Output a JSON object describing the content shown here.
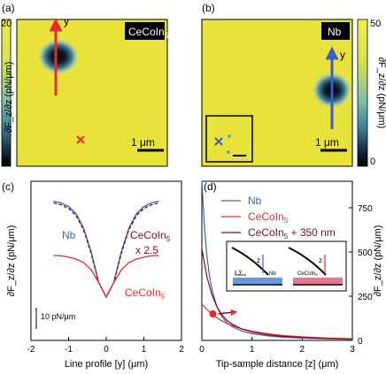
{
  "panels": {
    "a": {
      "label": "(a)",
      "material": "CeCoIn",
      "material_sub": "5",
      "scalebar": "1 μm",
      "axis_label": "y",
      "colorbar_ticks": [
        "20",
        "0"
      ],
      "colorbar_label": "∂F_z/∂z (pN/μm)"
    },
    "b": {
      "label": "(b)",
      "material": "Nb",
      "scalebar": "1 μm",
      "axis_label": "y",
      "colorbar_ticks": [
        "50",
        "0"
      ],
      "colorbar_label": "∂F_z/∂z (pN/μm)"
    },
    "c": {
      "label": "(c)",
      "ylabel": "∂F_z/∂z (pN/μm)",
      "xlabel": "Line profile [y] (μm)",
      "xticks": [
        "-2",
        "-1",
        "0",
        "1",
        "2"
      ],
      "scale_text": "10 pN/μm",
      "annotations": {
        "nb": "Nb",
        "ce_scaled": "CeCoIn",
        "ce_scaled_sub": "5",
        "ce_factor": "x 2.5",
        "ce": "CeCoIn",
        "ce_sub": "5"
      }
    },
    "d": {
      "label": "(d)",
      "xlabel": "Tip-sample distance [z] (μm)",
      "ylabel": "∂F_z/∂z (pN/μm)",
      "xticks": [
        "0",
        "1",
        "2",
        "3"
      ],
      "yticks": [
        "0",
        "250",
        "500",
        "750"
      ],
      "legend": [
        {
          "label": "Nb",
          "color": "#3a5fcd"
        },
        {
          "label": "CeCoIn",
          "sub": "5",
          "color": "#e8292c"
        },
        {
          "label": "CeCoIn",
          "sub": "5",
          "suffix": " + 350 nm",
          "color": "#7a1018"
        }
      ],
      "inset": {
        "z": "z",
        "nb": "Nb",
        "ce": "CeCoIn",
        "ce_sub": "5",
        "y": "y"
      }
    }
  },
  "colors": {
    "map_bg": "#e8e23a",
    "nb": "#3a5fcd",
    "ce": "#e8292c",
    "ce_shift": "#7a1018"
  },
  "chart_data": [
    {
      "type": "line",
      "title": "(c)",
      "xlabel": "Line profile [y] (μm)",
      "ylabel": "∂F_z/∂z (pN/μm)",
      "xlim": [
        -2,
        2
      ],
      "series": [
        {
          "name": "Nb",
          "x": [
            -1.4,
            -1.2,
            -1.0,
            -0.8,
            -0.6,
            -0.4,
            -0.2,
            0,
            0.2,
            0.4,
            0.6,
            0.8,
            1.0,
            1.2,
            1.4
          ],
          "values": [
            31.5,
            31.0,
            30.0,
            28.0,
            24.0,
            17.5,
            9.0,
            5.0,
            9.0,
            17.5,
            24.0,
            28.0,
            30.0,
            31.0,
            31.5
          ]
        },
        {
          "name": "CeCoIn5 x 2.5",
          "x": [
            -1.4,
            -1.2,
            -1.0,
            -0.8,
            -0.6,
            -0.4,
            -0.2,
            0,
            0.2,
            0.4,
            0.6,
            0.8,
            1.0,
            1.2,
            1.4
          ],
          "values": [
            31.0,
            30.5,
            29.5,
            27.5,
            23.5,
            17.0,
            9.0,
            5.0,
            9.0,
            17.0,
            23.5,
            27.5,
            29.5,
            30.5,
            31.0
          ]
        },
        {
          "name": "CeCoIn5",
          "x": [
            -1.4,
            -1.2,
            -1.0,
            -0.8,
            -0.6,
            -0.4,
            -0.2,
            0,
            0.2,
            0.4,
            0.6,
            0.8,
            1.0,
            1.2,
            1.4
          ],
          "values": [
            16.5,
            16.4,
            16.0,
            15.5,
            14.5,
            12.5,
            9.0,
            5.0,
            9.0,
            12.5,
            14.5,
            15.5,
            16.0,
            16.4,
            16.5
          ]
        }
      ]
    },
    {
      "type": "line",
      "title": "(d)",
      "xlabel": "Tip-sample distance [z] (μm)",
      "ylabel": "∂F_z/∂z (pN/μm)",
      "xlim": [
        0,
        3
      ],
      "ylim": [
        0,
        900
      ],
      "series": [
        {
          "name": "Nb",
          "x": [
            0.0,
            0.05,
            0.1,
            0.15,
            0.2,
            0.3,
            0.4,
            0.5,
            0.6,
            0.8,
            1.0,
            1.3,
            1.6,
            2.0,
            2.5,
            3.0
          ],
          "values": [
            900,
            650,
            480,
            370,
            290,
            190,
            135,
            100,
            78,
            52,
            38,
            26,
            18,
            13,
            9,
            7
          ]
        },
        {
          "name": "CeCoIn5",
          "x": [
            0.0,
            0.1,
            0.2,
            0.3,
            0.4,
            0.5,
            0.6,
            0.8,
            1.0,
            1.3,
            1.6,
            2.0,
            2.5,
            3.0
          ],
          "values": [
            205,
            175,
            150,
            128,
            110,
            96,
            84,
            65,
            52,
            38,
            28,
            20,
            13,
            9
          ]
        },
        {
          "name": "CeCoIn5 + 350 nm",
          "x": [
            0.0,
            0.1,
            0.2,
            0.3,
            0.4,
            0.5,
            0.6,
            0.8,
            1.0,
            1.3,
            1.6,
            2.0,
            2.5,
            3.0
          ],
          "values": [
            520,
            360,
            260,
            190,
            145,
            114,
            92,
            64,
            47,
            32,
            23,
            16,
            11,
            8
          ]
        }
      ],
      "markers": [
        {
          "x": 0.22,
          "y": 150
        }
      ]
    }
  ]
}
